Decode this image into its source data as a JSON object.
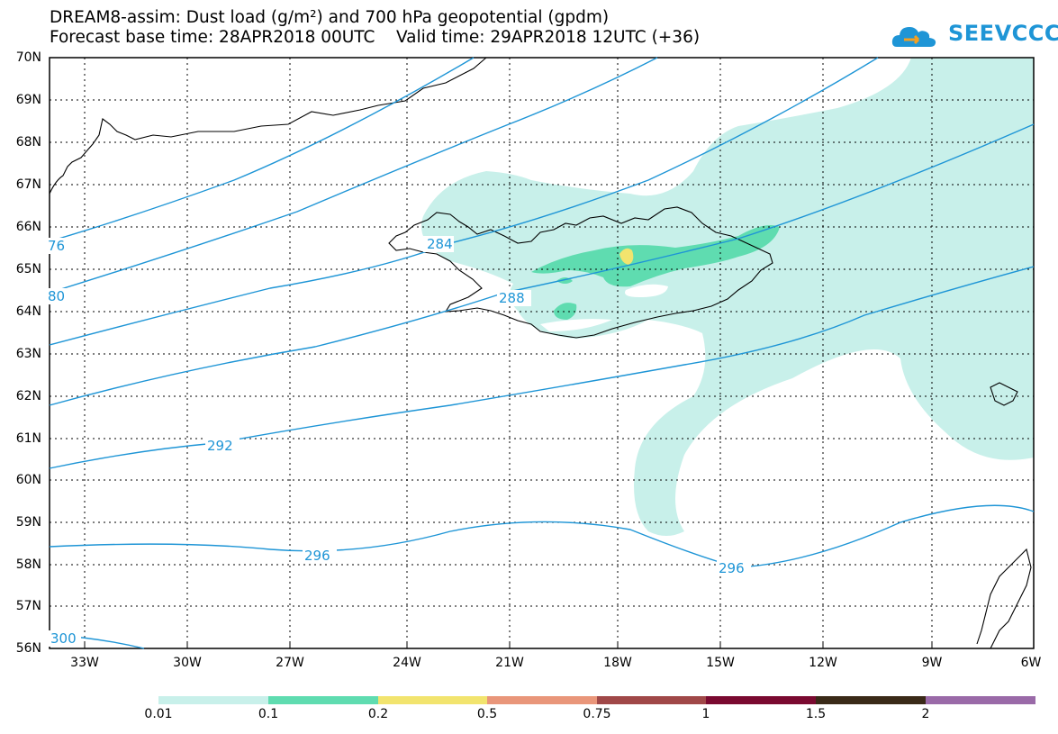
{
  "header": {
    "title_line1": "DREAM8-assim: Dust load (g/m²) and 700 hPa geopotential (gpdm)",
    "title_line2": "Forecast base time: 28APR2018 00UTC    Valid time: 29APR2018 12UTC (+36)"
  },
  "logo": {
    "text": "SEEVCCC",
    "color": "#1e95d6"
  },
  "map": {
    "lat_labels": [
      "70N",
      "69N",
      "68N",
      "67N",
      "66N",
      "65N",
      "64N",
      "63N",
      "62N",
      "61N",
      "60N",
      "59N",
      "58N",
      "57N",
      "56N"
    ],
    "lon_labels": [
      "33W",
      "30W",
      "27W",
      "24W",
      "21W",
      "18W",
      "15W",
      "12W",
      "9W",
      "6W"
    ],
    "contour_color": "#1e95d6",
    "contour_labels": [
      "76",
      "80",
      "284",
      "288",
      "292",
      "296",
      "296",
      "300"
    ]
  },
  "colorbar": {
    "labels": [
      "0.01",
      "0.1",
      "0.2",
      "0.5",
      "0.75",
      "1",
      "1.5",
      "2"
    ],
    "colors": [
      "#c8f0ea",
      "#5fdcb0",
      "#f2e46e",
      "#e9967a",
      "#a04848",
      "#7a0a30",
      "#3a2a18",
      "#9a6aa8"
    ]
  }
}
